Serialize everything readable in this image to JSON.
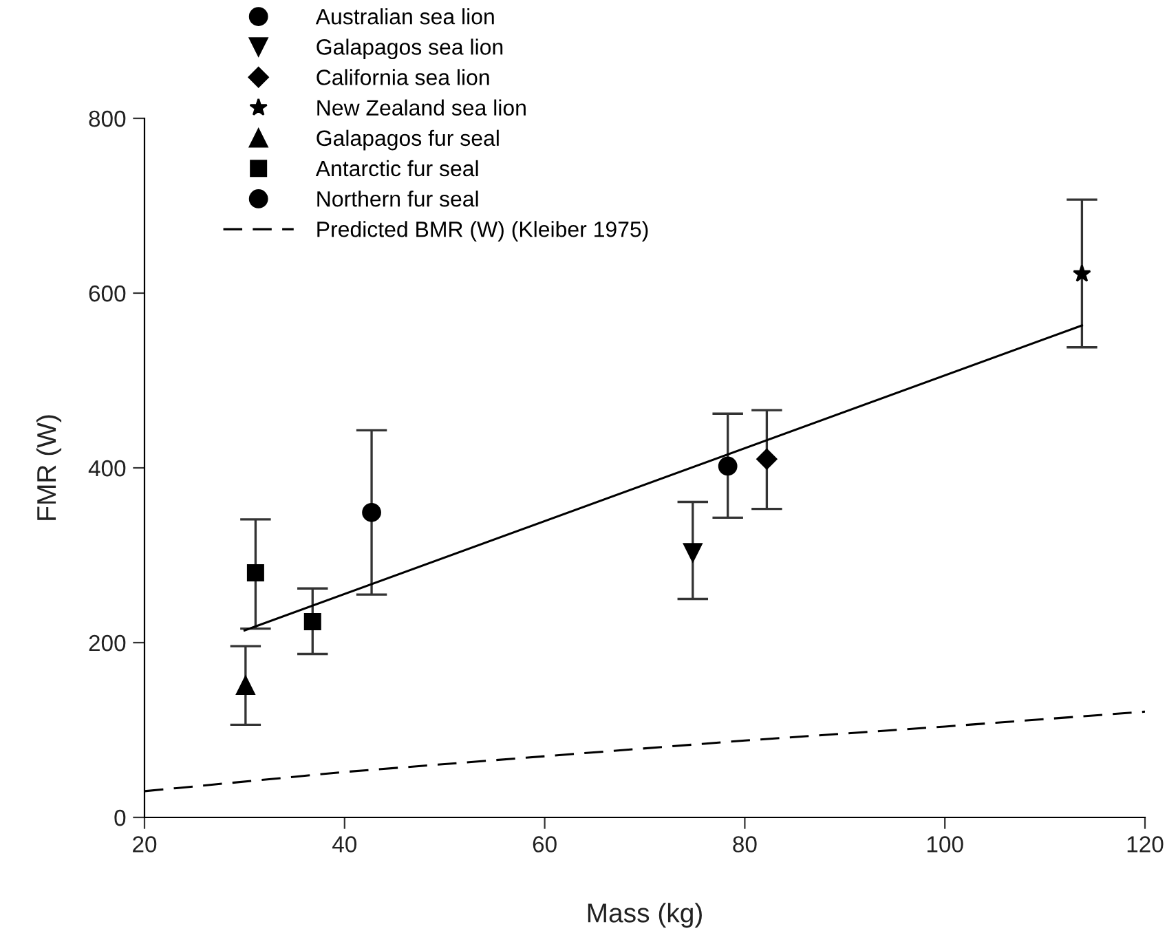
{
  "chart_data": {
    "type": "scatter",
    "xlabel": "Mass (kg)",
    "ylabel": "FMR (W)",
    "xlim": [
      20,
      120
    ],
    "xticks": [
      20,
      40,
      60,
      80,
      100,
      120
    ],
    "ylim": [
      0,
      800
    ],
    "yticks": [
      0,
      200,
      400,
      600,
      800
    ],
    "grid": false,
    "legend": "top left",
    "series": [
      {
        "name": "Australian sea lion",
        "color": "#000000",
        "marker": "circle",
        "x": [
          78.3
        ],
        "values": [
          402
        ],
        "errors": [
          [
            343,
            462
          ]
        ]
      },
      {
        "name": "Galapagos sea lion",
        "color": "#000000",
        "marker": "triangle_down",
        "x": [
          74.8
        ],
        "values": [
          303
        ],
        "errors": [
          [
            250,
            361
          ]
        ]
      },
      {
        "name": "California sea lion",
        "color": "#000000",
        "marker": "diamond",
        "x": [
          82.2
        ],
        "values": [
          410
        ],
        "errors": [
          [
            353,
            466
          ]
        ]
      },
      {
        "name": "New Zealand sea lion",
        "color": "#000000",
        "marker": "star",
        "x": [
          113.7
        ],
        "values": [
          622
        ],
        "errors": [
          [
            538,
            707
          ]
        ]
      },
      {
        "name": "Galapagos fur seal",
        "color": "#000000",
        "marker": "triangle",
        "x": [
          30.1
        ],
        "values": [
          151
        ],
        "errors": [
          [
            106,
            196
          ]
        ]
      },
      {
        "name": "Antarctic fur seal",
        "color": "#000000",
        "marker": "square",
        "x": [
          31.1,
          36.8
        ],
        "values": [
          280,
          224
        ],
        "errors": [
          [
            216,
            341
          ],
          [
            187,
            262
          ]
        ]
      },
      {
        "name": "Northern fur seal",
        "color": "#000000",
        "marker": "circle",
        "x": [
          42.7
        ],
        "values": [
          349
        ],
        "errors": [
          [
            255,
            443
          ]
        ]
      },
      {
        "name": "Predicted BMR (W) (Kleiber 1975)",
        "type": "line",
        "line_style": "dashed",
        "color": "#000000",
        "x": [
          20,
          40,
          60,
          80,
          100,
          120
        ],
        "values": [
          30,
          52,
          70,
          88,
          104,
          121
        ]
      },
      {
        "type": "line",
        "line_style": "solid",
        "color": "#000000",
        "x": [
          30.0,
          113.7
        ],
        "values": [
          214,
          563
        ]
      }
    ]
  }
}
